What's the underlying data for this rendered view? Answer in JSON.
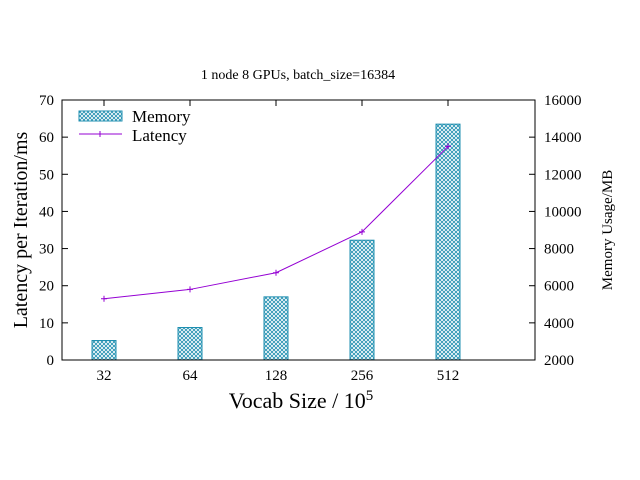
{
  "chart_data": {
    "type": "bar",
    "title": "1 node 8 GPUs, batch_size=16384",
    "xlabel": "Vocab Size / 10",
    "xlabel_superscript": "5",
    "ylabel": "Latency per Iteration/ms",
    "y2label": "Memory Usage/MB",
    "categories": [
      "32",
      "64",
      "128",
      "256",
      "512"
    ],
    "ylim": [
      0,
      70
    ],
    "y2lim": [
      2000,
      16000
    ],
    "yticks": [
      "0",
      "10",
      "20",
      "30",
      "40",
      "50",
      "60",
      "70"
    ],
    "y2ticks": [
      "2000",
      "4000",
      "6000",
      "8000",
      "10000",
      "12000",
      "14000",
      "16000"
    ],
    "legend_position": "top-left",
    "series": [
      {
        "name": "Memory",
        "type": "bar",
        "axis": "right",
        "color": "#1f8fb0",
        "values": [
          3050,
          3750,
          5400,
          8450,
          14700
        ]
      },
      {
        "name": "Latency",
        "type": "line",
        "axis": "left",
        "color": "#9400d3",
        "values": [
          16.5,
          19,
          23.5,
          34.5,
          57.5
        ]
      }
    ]
  }
}
